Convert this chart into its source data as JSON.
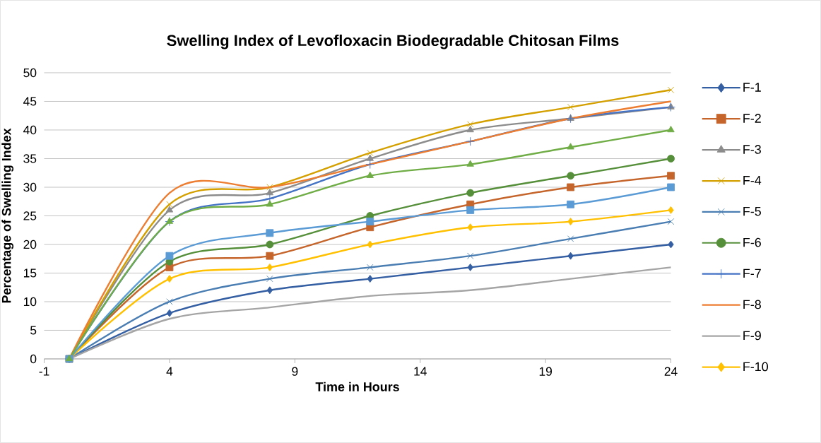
{
  "chart_data": {
    "type": "line",
    "title": "Swelling Index of Levofloxacin Biodegradable Chitosan Films",
    "xlabel": "Time in Hours",
    "ylabel": "Percentage of Swelling Index",
    "x": [
      0,
      4,
      8,
      12,
      16,
      20,
      24
    ],
    "xlim": [
      -1,
      24
    ],
    "xticks": [
      -1,
      4,
      9,
      14,
      19,
      24
    ],
    "ylim": [
      0,
      50
    ],
    "yticks": [
      0,
      5,
      10,
      15,
      20,
      25,
      30,
      35,
      40,
      45,
      50
    ],
    "grid": "y",
    "legend": "right",
    "series": [
      {
        "name": "F-1",
        "color": "#355fa3",
        "marker": "diamond",
        "values": [
          0,
          8,
          12,
          14,
          16,
          18,
          20
        ]
      },
      {
        "name": "F-2",
        "color": "#c5652b",
        "marker": "square",
        "values": [
          0,
          16,
          18,
          23,
          27,
          30,
          32
        ]
      },
      {
        "name": "F-3",
        "color": "#8c8c8c",
        "marker": "triangle",
        "values": [
          0,
          26,
          29,
          35,
          40,
          42,
          44
        ]
      },
      {
        "name": "F-4",
        "color": "#d4a000",
        "marker": "cross",
        "values": [
          0,
          27,
          30,
          36,
          41,
          44,
          47
        ]
      },
      {
        "name": "F-5",
        "color": "#4a7eb3",
        "marker": "cross",
        "values": [
          0,
          10,
          14,
          16,
          18,
          21,
          24
        ]
      },
      {
        "name": "F-6",
        "color": "#568f3a",
        "marker": "circle",
        "values": [
          0,
          17,
          20,
          25,
          29,
          32,
          35
        ]
      },
      {
        "name": "F-7",
        "color": "#4472c4",
        "marker": "plus",
        "values": [
          0,
          24,
          28,
          34,
          38,
          42,
          44
        ]
      },
      {
        "name": "F-8",
        "color": "#ed7d31",
        "marker": "none",
        "values": [
          0,
          29,
          30,
          34,
          38,
          42,
          45
        ]
      },
      {
        "name": "F-9",
        "color": "#a5a5a5",
        "marker": "none",
        "values": [
          0,
          7,
          9,
          11,
          12,
          14,
          16
        ]
      },
      {
        "name": "F-10",
        "color": "#ffc000",
        "marker": "diamond",
        "values": [
          0,
          14,
          16,
          20,
          23,
          24,
          26
        ]
      },
      {
        "color": "#5b9bd5",
        "marker": "square",
        "values": [
          0,
          18,
          22,
          24,
          26,
          27,
          30
        ]
      },
      {
        "color": "#70ad47",
        "marker": "triangle",
        "values": [
          0,
          24,
          27,
          32,
          34,
          37,
          40
        ]
      }
    ]
  }
}
